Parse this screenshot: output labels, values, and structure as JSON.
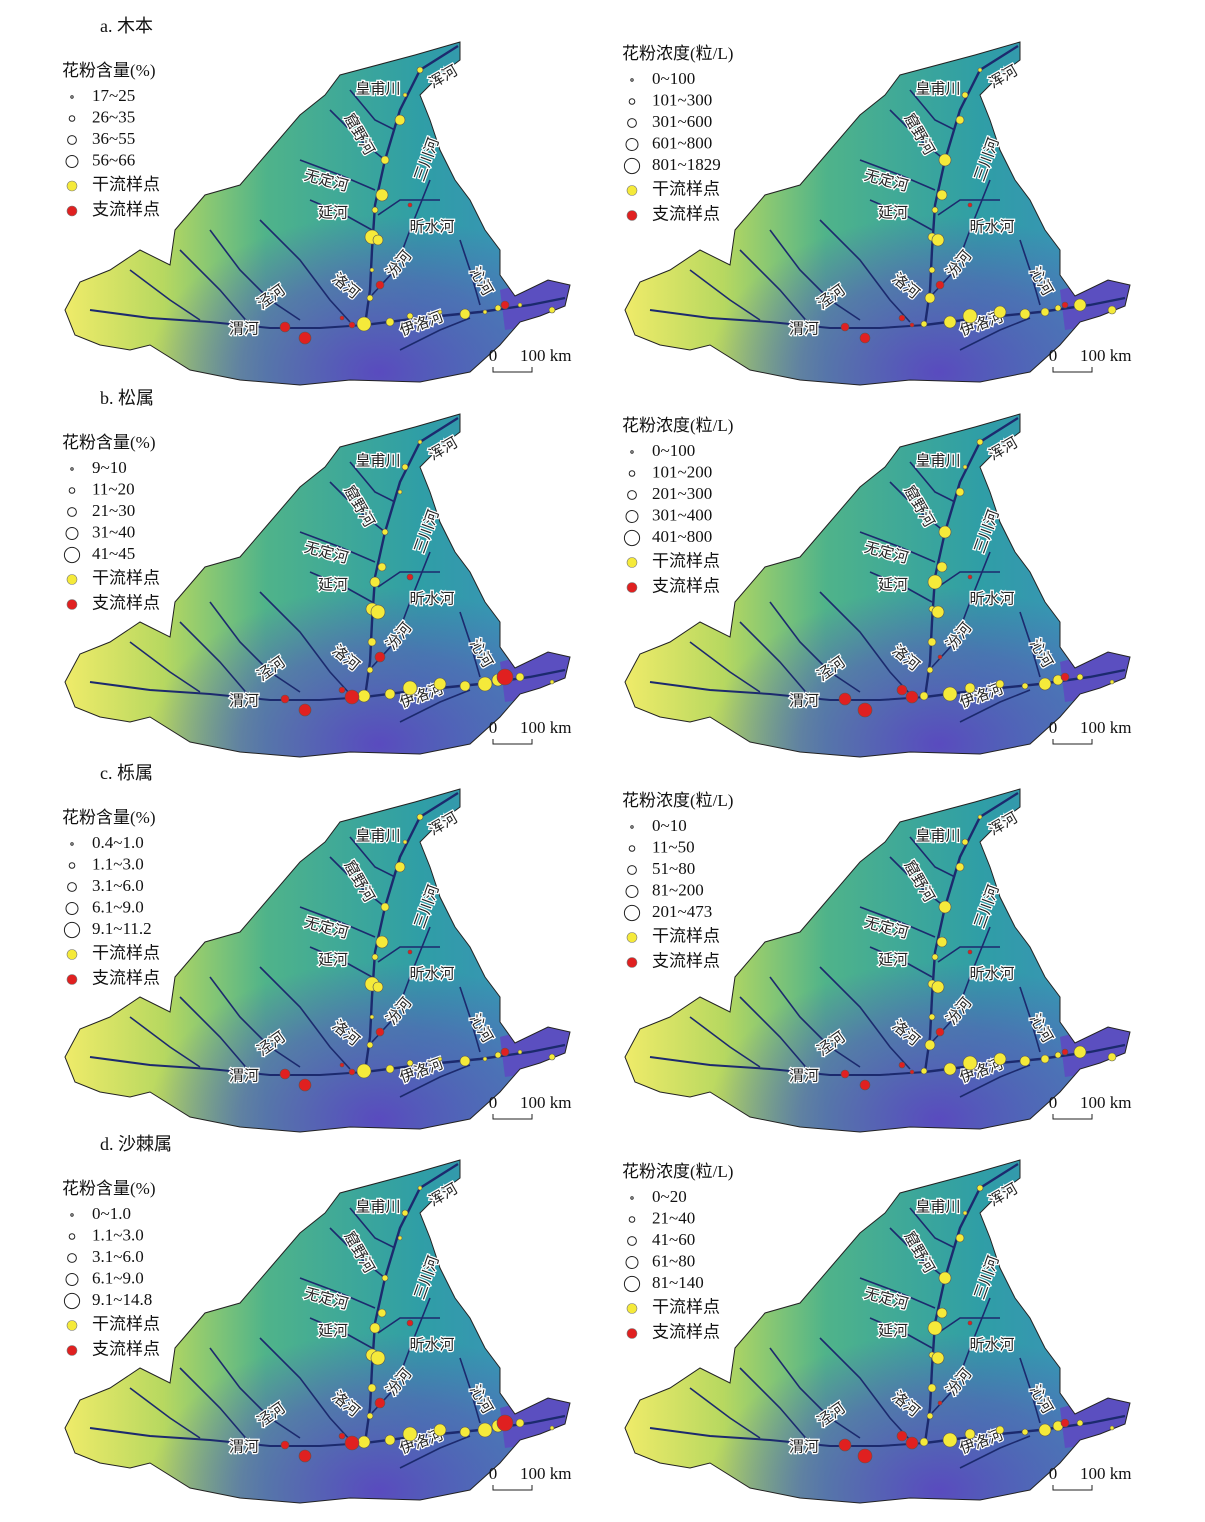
{
  "rows": [
    {
      "title": "a. 木本",
      "panels": [
        {
          "legend_title": "花粉含量(%)",
          "classes": [
            "17~25",
            "26~35",
            "36~55",
            "56~66"
          ]
        },
        {
          "legend_title": "花粉浓度(粒/L)",
          "classes": [
            "0~100",
            "101~300",
            "301~600",
            "601~800",
            "801~1829"
          ]
        }
      ]
    },
    {
      "title": "b. 松属",
      "panels": [
        {
          "legend_title": "花粉含量(%)",
          "classes": [
            "9~10",
            "11~20",
            "21~30",
            "31~40",
            "41~45"
          ]
        },
        {
          "legend_title": "花粉浓度(粒/L)",
          "classes": [
            "0~100",
            "101~200",
            "201~300",
            "301~400",
            "401~800"
          ]
        }
      ]
    },
    {
      "title": "c. 栎属",
      "panels": [
        {
          "legend_title": "花粉含量(%)",
          "classes": [
            "0.4~1.0",
            "1.1~3.0",
            "3.1~6.0",
            "6.1~9.0",
            "9.1~11.2"
          ]
        },
        {
          "legend_title": "花粉浓度(粒/L)",
          "classes": [
            "0~10",
            "11~50",
            "51~80",
            "81~200",
            "201~473"
          ]
        }
      ]
    },
    {
      "title": "d. 沙棘属",
      "panels": [
        {
          "legend_title": "花粉含量(%)",
          "classes": [
            "0~1.0",
            "1.1~3.0",
            "3.1~6.0",
            "6.1~9.0",
            "9.1~14.8"
          ]
        },
        {
          "legend_title": "花粉浓度(粒/L)",
          "classes": [
            "0~20",
            "21~40",
            "41~60",
            "61~80",
            "81~140"
          ]
        }
      ]
    }
  ],
  "legend": {
    "main": "干流样点",
    "tributary": "支流样点"
  },
  "rivers": [
    "皇甫川",
    "窟野河",
    "浑河",
    "无定河",
    "三川河",
    "延河",
    "昕水河",
    "洛河",
    "汾河",
    "沁河",
    "泾河",
    "渭河",
    "伊洛河"
  ],
  "scale": {
    "zero": "0",
    "label": "100 km"
  }
}
